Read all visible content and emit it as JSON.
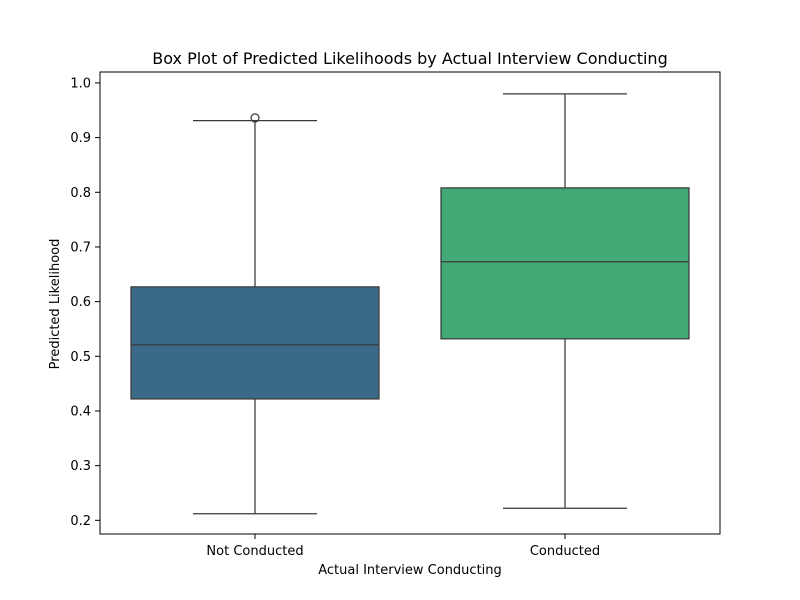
{
  "chart_data": {
    "type": "box",
    "title": "Box Plot of Predicted Likelihoods by Actual Interview Conducting",
    "xlabel": "Actual Interview Conducting",
    "ylabel": "Predicted Likelihood",
    "ylim": [
      0.175,
      1.02
    ],
    "yticks": [
      0.2,
      0.3,
      0.4,
      0.5,
      0.6,
      0.7,
      0.8,
      0.9,
      1.0
    ],
    "ytick_labels": [
      "0.2",
      "0.3",
      "0.4",
      "0.5",
      "0.6",
      "0.7",
      "0.8",
      "0.9",
      "1.0"
    ],
    "grid": false,
    "categories": [
      "Not Conducted",
      "Conducted"
    ],
    "series": [
      {
        "category": "Not Conducted",
        "color": "#3b6a88",
        "whisker_low": 0.212,
        "q1": 0.422,
        "median": 0.521,
        "q3": 0.627,
        "whisker_high": 0.931,
        "outliers": [
          0.936
        ]
      },
      {
        "category": "Conducted",
        "color": "#43a977",
        "whisker_low": 0.222,
        "q1": 0.532,
        "median": 0.673,
        "q3": 0.808,
        "whisker_high": 0.98,
        "outliers": []
      }
    ]
  }
}
